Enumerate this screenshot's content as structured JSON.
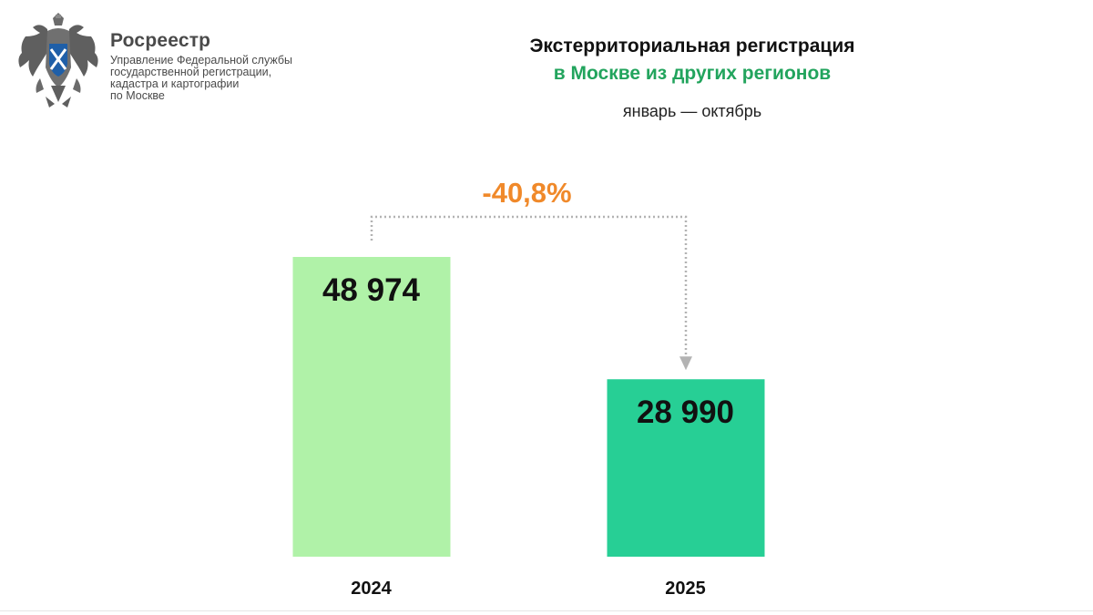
{
  "header": {
    "org_name": "Росреестр",
    "org_desc": "Управление Федеральной службы\nгосударственной регистрации,\nкадастра и картографии\nпо Москве",
    "logo_icon": "double-headed-eagle-emblem-icon"
  },
  "title": {
    "line1": "Экстерриториальная регистрация",
    "line2": "в Москве из других регионов",
    "subtitle": "январь — октябрь"
  },
  "colors": {
    "bar_2024": "#b0f2a8",
    "bar_2025": "#27cf95",
    "title_accent": "#22a45d",
    "change_accent": "#f0892a",
    "connector": "#b3b3b3"
  },
  "chart_data": {
    "type": "bar",
    "categories": [
      "2024",
      "2025"
    ],
    "values": [
      48974,
      28990
    ],
    "value_labels": [
      "48 974",
      "28 990"
    ],
    "change_label": "-40,8%",
    "ylim": [
      0,
      48974
    ],
    "grid": false
  }
}
